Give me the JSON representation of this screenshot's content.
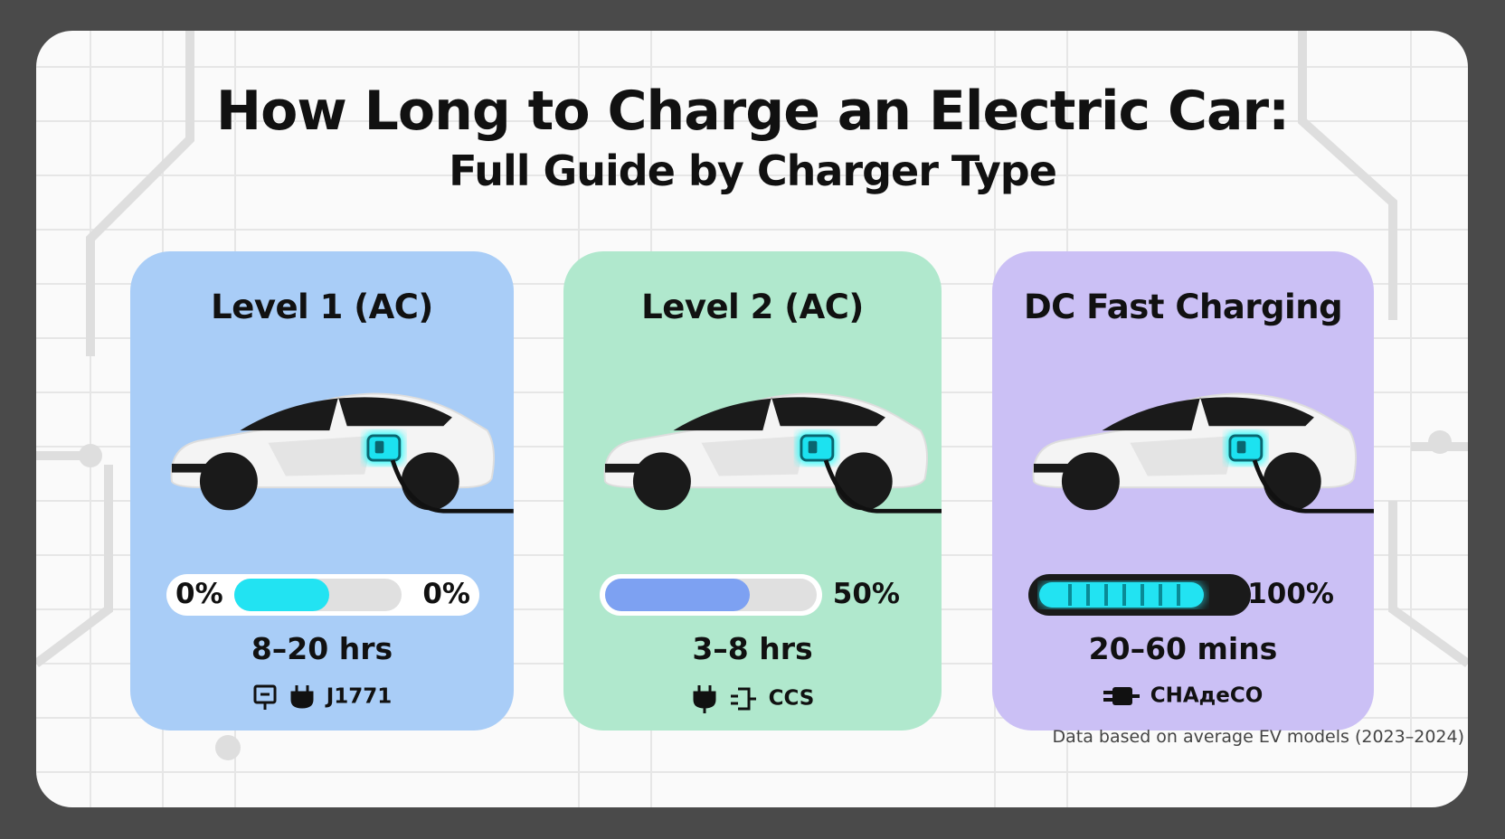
{
  "title": "How Long to Charge an Electric Car:",
  "subtitle": "Full Guide by Charger Type",
  "cards": [
    {
      "title": "Level 1 (AC)",
      "progress_start": "0%",
      "progress_end": "0%",
      "time": "8–20 hrs",
      "connector": "J1771"
    },
    {
      "title": "Level 2 (AC)",
      "progress_end": "50%",
      "time": "3–8 hrs",
      "connector": "CCS"
    },
    {
      "title": "DC Fast Charging",
      "progress_end": "100%",
      "time": "20–60 mins",
      "connector": "CHAдeCO"
    }
  ],
  "footnote": "Data based on average EV models (2023–2024)"
}
